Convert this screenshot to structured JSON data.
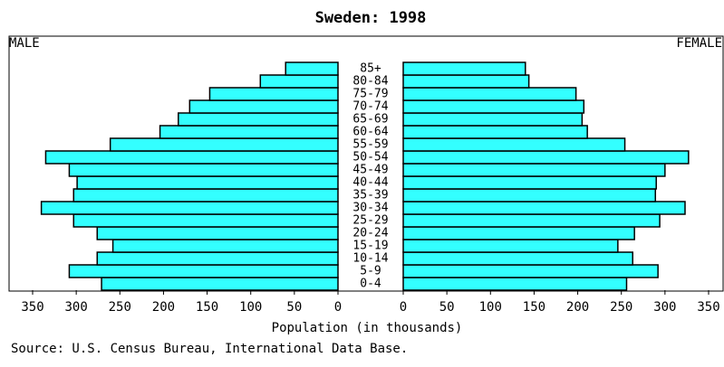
{
  "chart_data": {
    "type": "pyramid",
    "title": "Sweden: 1998",
    "xlabel": "Population (in thousands)",
    "source": "Source: U.S. Census Bureau, International Data Base.",
    "categories": [
      "0-4",
      "5-9",
      "10-14",
      "15-19",
      "20-24",
      "25-29",
      "30-34",
      "35-39",
      "40-44",
      "45-49",
      "50-54",
      "55-59",
      "60-64",
      "65-69",
      "70-74",
      "75-79",
      "80-84",
      "85+"
    ],
    "series": [
      {
        "name": "MALE",
        "color": "#33ffff",
        "values": [
          271,
          308,
          276,
          258,
          276,
          303,
          340,
          303,
          299,
          308,
          335,
          261,
          204,
          183,
          170,
          147,
          89,
          60
        ]
      },
      {
        "name": "FEMALE",
        "color": "#33ffff",
        "values": [
          256,
          292,
          263,
          246,
          265,
          294,
          323,
          289,
          290,
          300,
          327,
          254,
          211,
          205,
          207,
          198,
          144,
          140
        ]
      }
    ],
    "xlim": [
      0,
      350
    ],
    "xticks": [
      0,
      50,
      100,
      150,
      200,
      250,
      300,
      350
    ]
  }
}
